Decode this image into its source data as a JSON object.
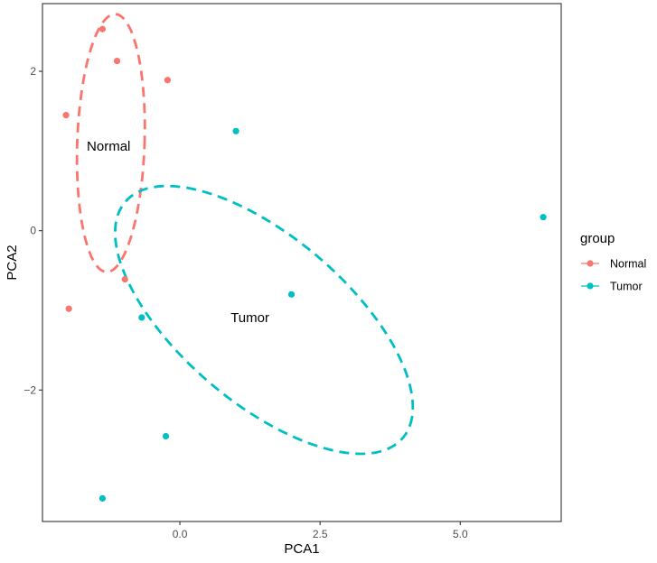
{
  "chart_data": {
    "type": "scatter",
    "xlabel": "PCA1",
    "ylabel": "PCA2",
    "xlim": [
      -2.45,
      6.8
    ],
    "ylim": [
      -3.65,
      2.85
    ],
    "xticks": [
      0.0,
      2.5,
      5.0
    ],
    "xtick_labels": [
      "0.0",
      "2.5",
      "5.0"
    ],
    "yticks": [
      2,
      0,
      -2
    ],
    "ytick_labels": [
      "2",
      "0",
      "−2"
    ],
    "grid": false,
    "legend": {
      "title": "group",
      "position": "right",
      "entries": [
        {
          "label": "Normal",
          "color": "#F8766D"
        },
        {
          "label": "Tumor",
          "color": "#00BFC4"
        }
      ]
    },
    "series": [
      {
        "name": "Normal",
        "color": "#F8766D",
        "points": [
          {
            "x": -1.38,
            "y": 2.53
          },
          {
            "x": -1.12,
            "y": 2.13
          },
          {
            "x": -0.22,
            "y": 1.89
          },
          {
            "x": -2.03,
            "y": 1.45
          },
          {
            "x": -0.98,
            "y": -0.61
          },
          {
            "x": -1.98,
            "y": -0.98
          }
        ],
        "ellipse": {
          "cx": -1.23,
          "cy": 1.1,
          "rx": 0.6,
          "ry": 1.62,
          "angle_deg": -3
        },
        "annotation": {
          "text": "Normal",
          "x": -1.27,
          "y": 1.06
        }
      },
      {
        "name": "Tumor",
        "color": "#00BFC4",
        "points": [
          {
            "x": 1.0,
            "y": 1.25
          },
          {
            "x": 6.48,
            "y": 0.17
          },
          {
            "x": 1.99,
            "y": -0.8
          },
          {
            "x": -0.68,
            "y": -1.09
          },
          {
            "x": -0.25,
            "y": -2.58
          },
          {
            "x": -1.38,
            "y": -3.36
          }
        ],
        "ellipse": {
          "cx": 1.5,
          "cy": -1.12,
          "rx": 2.92,
          "ry": 1.16,
          "angle_deg": -27
        },
        "annotation": {
          "text": "Tumor",
          "x": 1.25,
          "y": -1.09
        }
      }
    ]
  }
}
